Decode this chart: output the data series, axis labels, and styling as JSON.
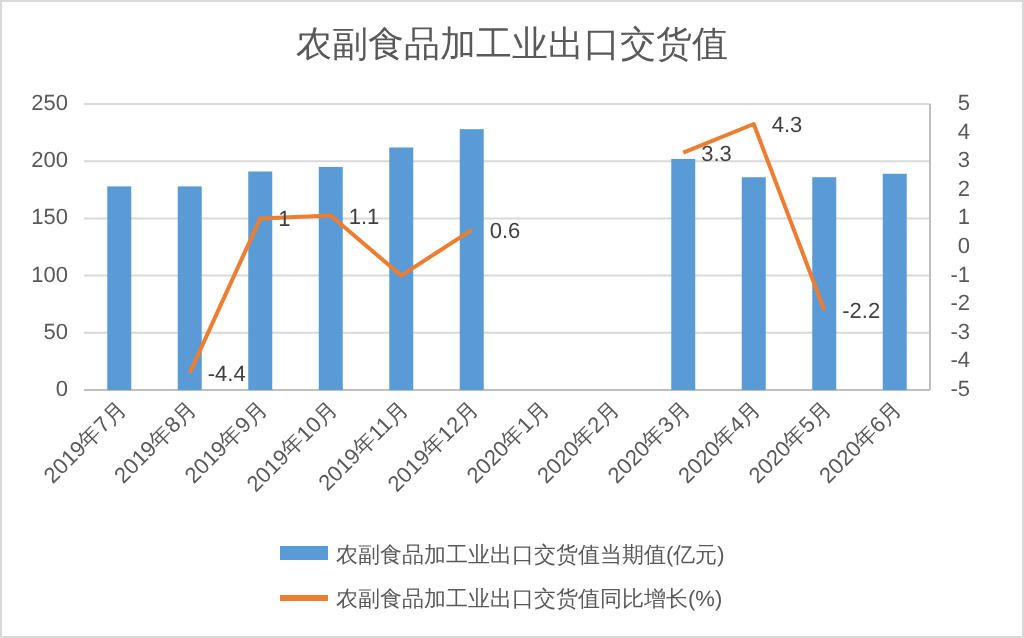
{
  "chart_data": {
    "type": "bar",
    "title": "农副食品加工业出口交货值",
    "categories": [
      "2019年7月",
      "2019年8月",
      "2019年9月",
      "2019年10月",
      "2019年11月",
      "2019年12月",
      "2020年1月",
      "2020年2月",
      "2020年3月",
      "2020年4月",
      "2020年5月",
      "2020年6月"
    ],
    "series": [
      {
        "name": "农副食品加工业出口交货值当期值(亿元)",
        "color": "#5b9bd5",
        "values": [
          178,
          178,
          191,
          195,
          212,
          228,
          null,
          null,
          202,
          186,
          186,
          189
        ]
      },
      {
        "name": "农副食品加工业出口交货值同比增长(%)",
        "type": "line",
        "axis": "y2",
        "color": "#ed7d31",
        "values": [
          null,
          -4.4,
          1,
          1.1,
          -1.0,
          0.6,
          null,
          null,
          3.3,
          4.3,
          -2.2,
          null
        ],
        "value_labels": [
          null,
          "-4.4",
          "1",
          "1.1",
          null,
          "0.6",
          null,
          null,
          "3.3",
          "4.3",
          "-2.2",
          null
        ]
      }
    ],
    "ylim": [
      0,
      250
    ],
    "yticks": [
      0,
      50,
      100,
      150,
      200,
      250
    ],
    "y2lim": [
      -5,
      5
    ],
    "y2ticks": [
      -5,
      -4,
      -3,
      -2,
      -1,
      0,
      1,
      2,
      3,
      4,
      5
    ],
    "grid": "y",
    "legend": "bottom"
  }
}
